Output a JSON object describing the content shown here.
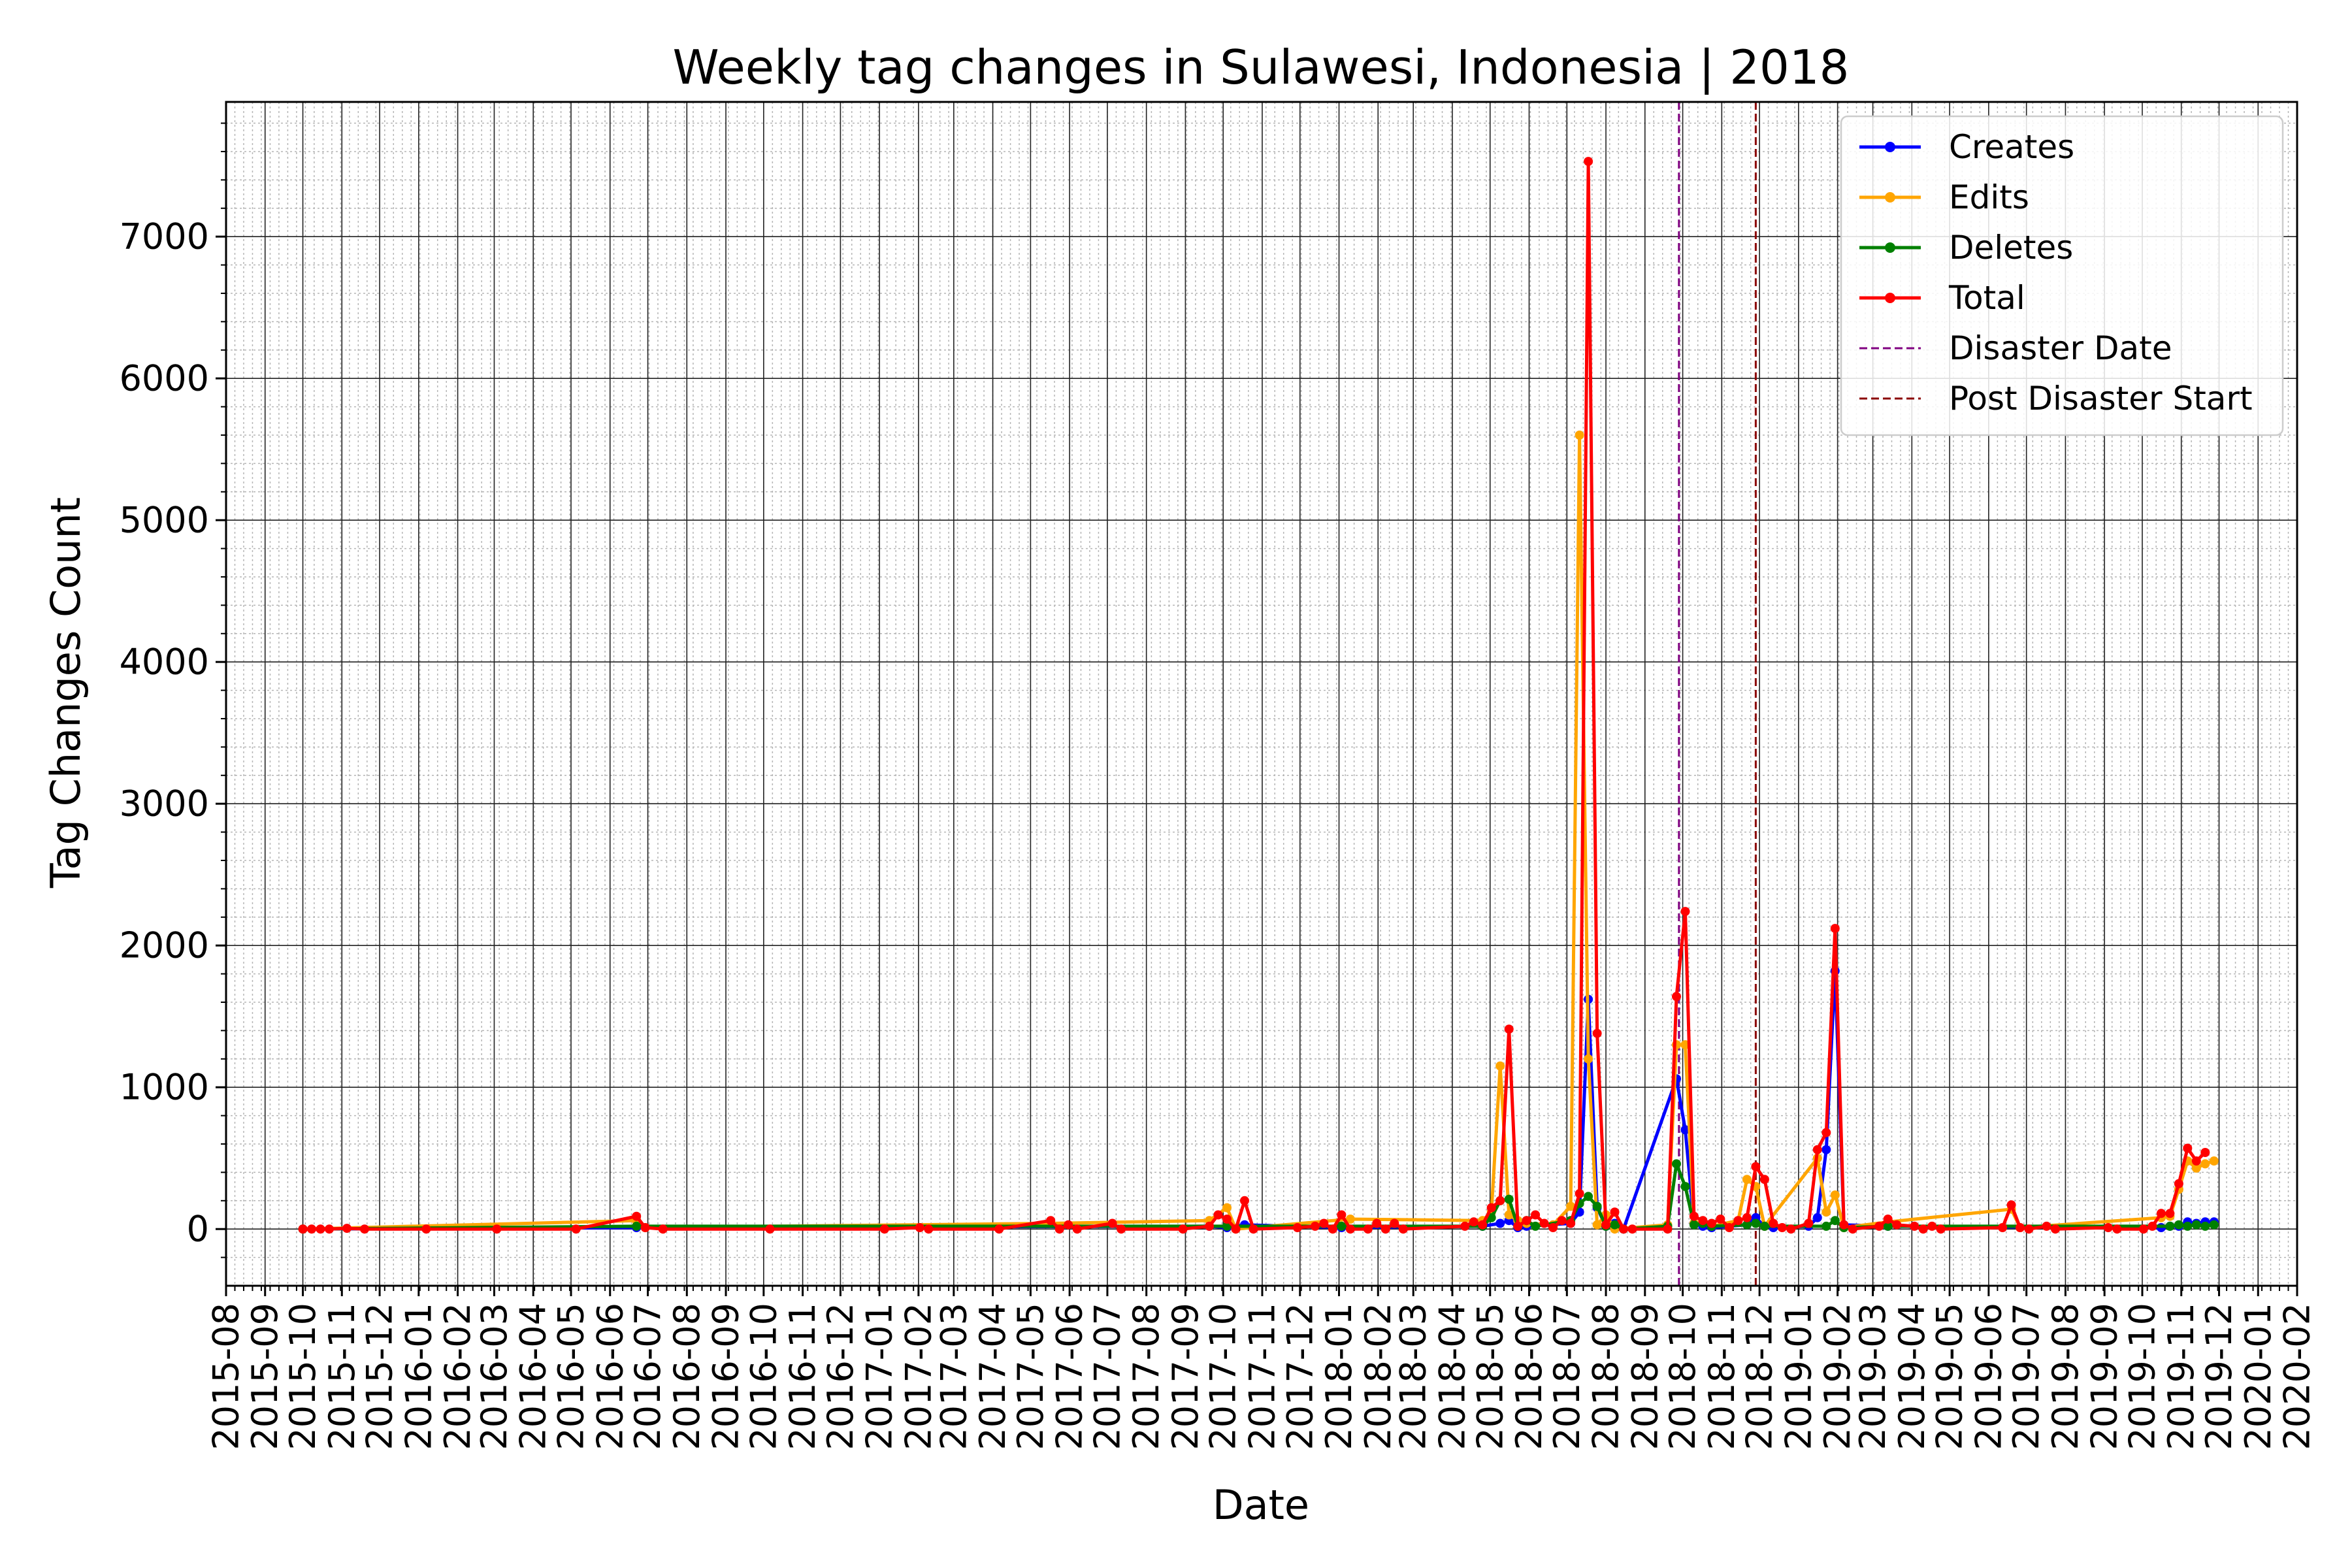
{
  "chart_data": {
    "type": "line",
    "title": "Weekly tag changes in Sulawesi, Indonesia | 2018",
    "xlabel": "Date",
    "ylabel": "Tag Changes Count",
    "xlim": [
      "2015-08-01",
      "2020-02-01"
    ],
    "ylim": [
      -400,
      7950
    ],
    "yticks": [
      0,
      1000,
      2000,
      3000,
      4000,
      5000,
      6000,
      7000
    ],
    "xticks": [
      "2015-08",
      "2015-09",
      "2015-10",
      "2015-11",
      "2015-12",
      "2016-01",
      "2016-02",
      "2016-03",
      "2016-04",
      "2016-05",
      "2016-06",
      "2016-07",
      "2016-08",
      "2016-09",
      "2016-10",
      "2016-11",
      "2016-12",
      "2017-01",
      "2017-02",
      "2017-03",
      "2017-04",
      "2017-05",
      "2017-06",
      "2017-07",
      "2017-08",
      "2017-09",
      "2017-10",
      "2017-11",
      "2017-12",
      "2018-01",
      "2018-02",
      "2018-03",
      "2018-04",
      "2018-05",
      "2018-06",
      "2018-07",
      "2018-08",
      "2018-09",
      "2018-10",
      "2018-11",
      "2018-12",
      "2019-01",
      "2019-02",
      "2019-03",
      "2019-04",
      "2019-05",
      "2019-06",
      "2019-07",
      "2019-08",
      "2019-09",
      "2019-10",
      "2019-11",
      "2019-12",
      "2020-01",
      "2020-02"
    ],
    "grid": true,
    "legend_position": "top-right",
    "legend": [
      "Creates",
      "Edits",
      "Deletes",
      "Total",
      "Disaster Date",
      "Post Disaster Start"
    ],
    "vlines": [
      {
        "label": "Disaster Date",
        "date": "2018-09-28",
        "color": "#800080"
      },
      {
        "label": "Post Disaster Start",
        "date": "2018-11-28",
        "color": "#8b0000"
      }
    ],
    "series": [
      {
        "name": "Creates",
        "color": "#0000ff",
        "points": [
          [
            "2015-10-01",
            0
          ],
          [
            "2016-06-22",
            10
          ],
          [
            "2017-09-20",
            20
          ],
          [
            "2017-10-04",
            10
          ],
          [
            "2017-10-18",
            30
          ],
          [
            "2018-01-03",
            10
          ],
          [
            "2018-04-25",
            20
          ],
          [
            "2018-05-09",
            40
          ],
          [
            "2018-05-16",
            60
          ],
          [
            "2018-05-23",
            10
          ],
          [
            "2018-05-30",
            20
          ],
          [
            "2018-07-04",
            40
          ],
          [
            "2018-07-11",
            120
          ],
          [
            "2018-07-18",
            1620
          ],
          [
            "2018-07-25",
            150
          ],
          [
            "2018-08-01",
            20
          ],
          [
            "2018-08-08",
            40
          ],
          [
            "2018-08-15",
            0
          ],
          [
            "2018-09-26",
            1060
          ],
          [
            "2018-10-03",
            700
          ],
          [
            "2018-10-10",
            40
          ],
          [
            "2018-10-17",
            20
          ],
          [
            "2018-10-24",
            10
          ],
          [
            "2018-11-21",
            30
          ],
          [
            "2018-11-28",
            80
          ],
          [
            "2018-12-05",
            20
          ],
          [
            "2018-12-12",
            10
          ],
          [
            "2019-01-09",
            20
          ],
          [
            "2019-01-16",
            80
          ],
          [
            "2019-01-23",
            560
          ],
          [
            "2019-01-30",
            1820
          ],
          [
            "2019-02-06",
            30
          ],
          [
            "2019-03-13",
            20
          ],
          [
            "2019-10-16",
            10
          ],
          [
            "2019-10-23",
            20
          ],
          [
            "2019-10-30",
            20
          ],
          [
            "2019-11-06",
            50
          ],
          [
            "2019-11-13",
            40
          ],
          [
            "2019-11-20",
            50
          ],
          [
            "2019-11-27",
            50
          ]
        ]
      },
      {
        "name": "Edits",
        "color": "#ffa500",
        "points": [
          [
            "2015-10-01",
            0
          ],
          [
            "2016-06-22",
            60
          ],
          [
            "2016-06-29",
            10
          ],
          [
            "2017-05-17",
            40
          ],
          [
            "2017-09-20",
            60
          ],
          [
            "2017-10-04",
            150
          ],
          [
            "2017-10-11",
            0
          ],
          [
            "2018-01-10",
            70
          ],
          [
            "2018-04-25",
            60
          ],
          [
            "2018-05-02",
            120
          ],
          [
            "2018-05-09",
            1150
          ],
          [
            "2018-05-16",
            100
          ],
          [
            "2018-05-23",
            60
          ],
          [
            "2018-05-30",
            40
          ],
          [
            "2018-06-20",
            30
          ],
          [
            "2018-07-04",
            160
          ],
          [
            "2018-07-11",
            5600
          ],
          [
            "2018-07-18",
            1200
          ],
          [
            "2018-07-25",
            30
          ],
          [
            "2018-08-01",
            100
          ],
          [
            "2018-08-08",
            0
          ],
          [
            "2018-09-19",
            30
          ],
          [
            "2018-09-26",
            1300
          ],
          [
            "2018-10-03",
            1300
          ],
          [
            "2018-10-10",
            40
          ],
          [
            "2018-10-17",
            40
          ],
          [
            "2018-10-24",
            20
          ],
          [
            "2018-11-14",
            60
          ],
          [
            "2018-11-21",
            350
          ],
          [
            "2018-11-28",
            300
          ],
          [
            "2018-12-05",
            20
          ],
          [
            "2019-01-16",
            500
          ],
          [
            "2019-01-23",
            120
          ],
          [
            "2019-01-30",
            240
          ],
          [
            "2019-02-06",
            10
          ],
          [
            "2019-03-13",
            50
          ],
          [
            "2019-06-19",
            140
          ],
          [
            "2019-06-26",
            10
          ],
          [
            "2019-10-16",
            80
          ],
          [
            "2019-10-23",
            90
          ],
          [
            "2019-10-30",
            280
          ],
          [
            "2019-11-06",
            480
          ],
          [
            "2019-11-13",
            430
          ],
          [
            "2019-11-20",
            460
          ],
          [
            "2019-11-27",
            480
          ]
        ]
      },
      {
        "name": "Deletes",
        "color": "#008000",
        "points": [
          [
            "2015-10-01",
            0
          ],
          [
            "2016-06-22",
            20
          ],
          [
            "2017-10-04",
            20
          ],
          [
            "2018-01-03",
            20
          ],
          [
            "2018-04-25",
            20
          ],
          [
            "2018-05-02",
            80
          ],
          [
            "2018-05-09",
            200
          ],
          [
            "2018-05-16",
            210
          ],
          [
            "2018-05-23",
            20
          ],
          [
            "2018-05-30",
            60
          ],
          [
            "2018-06-06",
            20
          ],
          [
            "2018-07-04",
            60
          ],
          [
            "2018-07-11",
            180
          ],
          [
            "2018-07-18",
            230
          ],
          [
            "2018-07-25",
            160
          ],
          [
            "2018-08-01",
            20
          ],
          [
            "2018-08-08",
            30
          ],
          [
            "2018-08-15",
            0
          ],
          [
            "2018-09-19",
            20
          ],
          [
            "2018-09-26",
            460
          ],
          [
            "2018-10-03",
            300
          ],
          [
            "2018-10-10",
            30
          ],
          [
            "2018-10-17",
            40
          ],
          [
            "2018-10-24",
            20
          ],
          [
            "2018-11-21",
            30
          ],
          [
            "2018-11-28",
            40
          ],
          [
            "2018-12-05",
            20
          ],
          [
            "2019-01-23",
            20
          ],
          [
            "2019-01-30",
            60
          ],
          [
            "2019-02-06",
            10
          ],
          [
            "2019-03-13",
            20
          ],
          [
            "2019-10-23",
            20
          ],
          [
            "2019-10-30",
            30
          ],
          [
            "2019-11-06",
            20
          ],
          [
            "2019-11-13",
            30
          ],
          [
            "2019-11-20",
            20
          ],
          [
            "2019-11-27",
            30
          ]
        ]
      },
      {
        "name": "Total",
        "color": "#ff0000",
        "points": [
          [
            "2015-10-01",
            0
          ],
          [
            "2015-10-08",
            0
          ],
          [
            "2015-10-15",
            0
          ],
          [
            "2015-10-22",
            0
          ],
          [
            "2015-11-05",
            5
          ],
          [
            "2015-11-19",
            0
          ],
          [
            "2016-01-07",
            0
          ],
          [
            "2016-03-03",
            0
          ],
          [
            "2016-05-05",
            0
          ],
          [
            "2016-06-22",
            90
          ],
          [
            "2016-06-29",
            10
          ],
          [
            "2016-07-13",
            0
          ],
          [
            "2016-10-06",
            0
          ],
          [
            "2017-01-05",
            0
          ],
          [
            "2017-02-02",
            10
          ],
          [
            "2017-02-09",
            0
          ],
          [
            "2017-04-06",
            0
          ],
          [
            "2017-05-17",
            60
          ],
          [
            "2017-05-24",
            0
          ],
          [
            "2017-05-31",
            30
          ],
          [
            "2017-06-07",
            0
          ],
          [
            "2017-07-05",
            40
          ],
          [
            "2017-07-12",
            0
          ],
          [
            "2017-08-30",
            0
          ],
          [
            "2017-09-20",
            20
          ],
          [
            "2017-09-27",
            100
          ],
          [
            "2017-10-04",
            70
          ],
          [
            "2017-10-11",
            0
          ],
          [
            "2017-10-18",
            200
          ],
          [
            "2017-10-25",
            0
          ],
          [
            "2017-11-29",
            10
          ],
          [
            "2017-12-13",
            20
          ],
          [
            "2017-12-20",
            40
          ],
          [
            "2017-12-27",
            0
          ],
          [
            "2018-01-03",
            100
          ],
          [
            "2018-01-10",
            0
          ],
          [
            "2018-01-24",
            0
          ],
          [
            "2018-01-31",
            40
          ],
          [
            "2018-02-07",
            0
          ],
          [
            "2018-02-14",
            40
          ],
          [
            "2018-02-21",
            0
          ],
          [
            "2018-04-11",
            20
          ],
          [
            "2018-04-18",
            50
          ],
          [
            "2018-04-25",
            30
          ],
          [
            "2018-05-02",
            150
          ],
          [
            "2018-05-09",
            200
          ],
          [
            "2018-05-16",
            1410
          ],
          [
            "2018-05-23",
            20
          ],
          [
            "2018-05-30",
            60
          ],
          [
            "2018-06-06",
            100
          ],
          [
            "2018-06-13",
            40
          ],
          [
            "2018-06-20",
            10
          ],
          [
            "2018-06-27",
            60
          ],
          [
            "2018-07-04",
            40
          ],
          [
            "2018-07-11",
            250
          ],
          [
            "2018-07-18",
            7530
          ],
          [
            "2018-07-25",
            1380
          ],
          [
            "2018-08-01",
            30
          ],
          [
            "2018-08-08",
            120
          ],
          [
            "2018-08-15",
            0
          ],
          [
            "2018-08-22",
            0
          ],
          [
            "2018-09-19",
            0
          ],
          [
            "2018-09-26",
            1640
          ],
          [
            "2018-10-03",
            2240
          ],
          [
            "2018-10-10",
            90
          ],
          [
            "2018-10-17",
            60
          ],
          [
            "2018-10-24",
            40
          ],
          [
            "2018-10-31",
            70
          ],
          [
            "2018-11-07",
            10
          ],
          [
            "2018-11-14",
            60
          ],
          [
            "2018-11-21",
            80
          ],
          [
            "2018-11-28",
            440
          ],
          [
            "2018-12-05",
            350
          ],
          [
            "2018-12-12",
            40
          ],
          [
            "2018-12-19",
            10
          ],
          [
            "2018-12-26",
            0
          ],
          [
            "2019-01-09",
            40
          ],
          [
            "2019-01-16",
            560
          ],
          [
            "2019-01-23",
            680
          ],
          [
            "2019-01-30",
            2120
          ],
          [
            "2019-02-06",
            30
          ],
          [
            "2019-02-13",
            0
          ],
          [
            "2019-03-06",
            20
          ],
          [
            "2019-03-13",
            70
          ],
          [
            "2019-03-20",
            30
          ],
          [
            "2019-04-03",
            20
          ],
          [
            "2019-04-10",
            0
          ],
          [
            "2019-04-17",
            20
          ],
          [
            "2019-04-24",
            0
          ],
          [
            "2019-06-12",
            10
          ],
          [
            "2019-06-19",
            170
          ],
          [
            "2019-06-26",
            10
          ],
          [
            "2019-07-03",
            0
          ],
          [
            "2019-07-17",
            20
          ],
          [
            "2019-07-24",
            0
          ],
          [
            "2019-09-04",
            10
          ],
          [
            "2019-09-11",
            0
          ],
          [
            "2019-10-02",
            0
          ],
          [
            "2019-10-09",
            20
          ],
          [
            "2019-10-16",
            110
          ],
          [
            "2019-10-23",
            110
          ],
          [
            "2019-10-30",
            320
          ],
          [
            "2019-11-06",
            570
          ],
          [
            "2019-11-13",
            480
          ],
          [
            "2019-11-20",
            540
          ]
        ]
      }
    ]
  }
}
